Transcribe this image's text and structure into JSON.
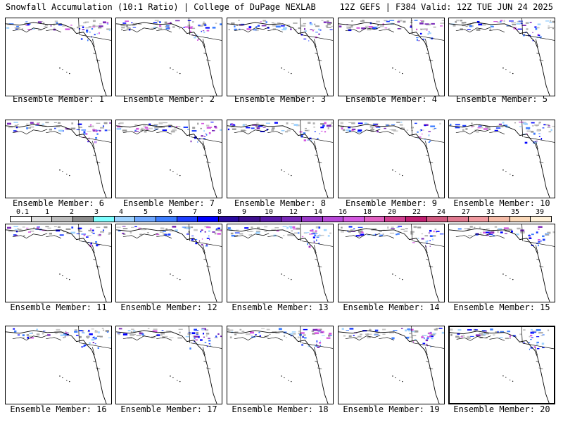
{
  "header": {
    "title_left": "Snowfall Accumulation (10:1 Ratio) | College of DuPage NEXLAB",
    "title_right": "12Z GEFS | F384 Valid: 12Z TUE JUN 24 2025"
  },
  "colorbar": {
    "labels": [
      "0.1",
      "1",
      "2",
      "3",
      "4",
      "5",
      "6",
      "7",
      "8",
      "9",
      "10",
      "12",
      "14",
      "16",
      "18",
      "20",
      "22",
      "24",
      "27",
      "31",
      "35",
      "39"
    ],
    "colors": [
      "#ffffff",
      "#e0e0e0",
      "#bdbdbd",
      "#8c8c8c",
      "#7fffff",
      "#9fd3ff",
      "#6fa8ff",
      "#3f7fff",
      "#1f3fff",
      "#0000ff",
      "#2a0aa0",
      "#3f0f8f",
      "#5a1aa8",
      "#7a2ab8",
      "#9a3ac8",
      "#b84ad8",
      "#d45ae0",
      "#e060c0",
      "#d04090",
      "#c02070",
      "#d05a80",
      "#e07a90",
      "#f09aa0",
      "#f5bca8",
      "#fad8b8",
      "#fff0d8"
    ]
  },
  "panels": [
    {
      "caption": "Ensemble Member: 1"
    },
    {
      "caption": "Ensemble Member: 2"
    },
    {
      "caption": "Ensemble Member: 3"
    },
    {
      "caption": "Ensemble Member: 4"
    },
    {
      "caption": "Ensemble Member: 5"
    },
    {
      "caption": "Ensemble Member: 6"
    },
    {
      "caption": "Ensemble Member: 7"
    },
    {
      "caption": "Ensemble Member: 8"
    },
    {
      "caption": "Ensemble Member: 9"
    },
    {
      "caption": "Ensemble Member: 10"
    },
    {
      "caption": "Ensemble Member: 11"
    },
    {
      "caption": "Ensemble Member: 12"
    },
    {
      "caption": "Ensemble Member: 13"
    },
    {
      "caption": "Ensemble Member: 14"
    },
    {
      "caption": "Ensemble Member: 15"
    },
    {
      "caption": "Ensemble Member: 16"
    },
    {
      "caption": "Ensemble Member: 17"
    },
    {
      "caption": "Ensemble Member: 18"
    },
    {
      "caption": "Ensemble Member: 19"
    },
    {
      "caption": "Ensemble Member: 20"
    }
  ]
}
